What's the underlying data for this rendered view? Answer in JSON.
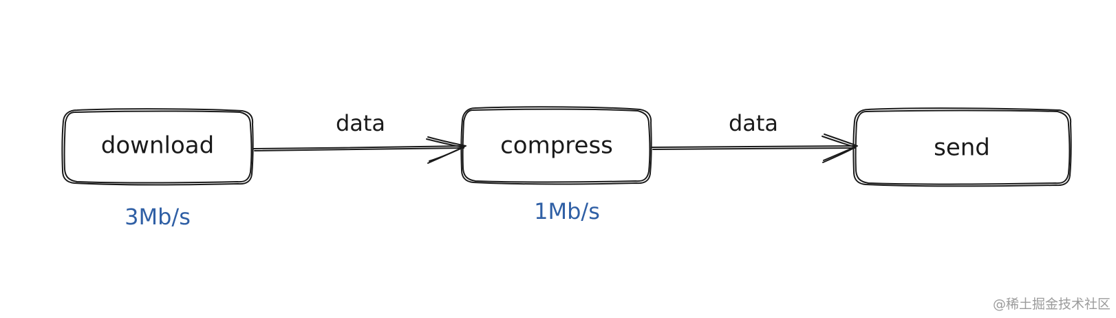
{
  "diagram": {
    "nodes": [
      {
        "id": "download",
        "label": "download",
        "rate": "3Mb/s"
      },
      {
        "id": "compress",
        "label": "compress",
        "rate": "1Mb/s"
      },
      {
        "id": "send",
        "label": "send"
      }
    ],
    "edges": [
      {
        "from": "download",
        "to": "compress",
        "label": "data"
      },
      {
        "from": "compress",
        "to": "send",
        "label": "data"
      }
    ]
  },
  "watermark": "@稀土掘金技术社区",
  "colors": {
    "stroke": "#1a1a1a",
    "rate_text": "#2f5fa5",
    "background": "#ffffff"
  }
}
